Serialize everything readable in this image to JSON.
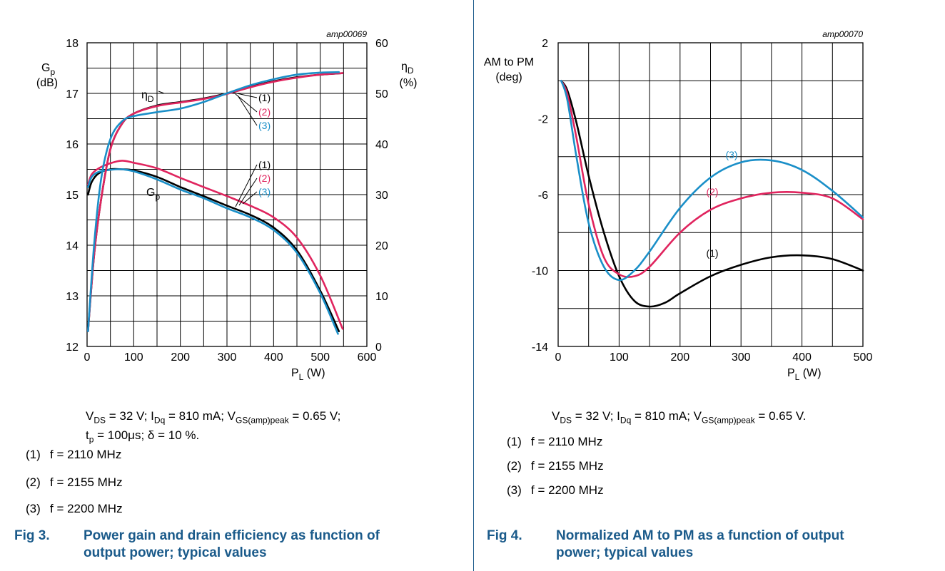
{
  "colors": {
    "c1": "#000000",
    "c2": "#e0245e",
    "c3": "#1a8fc8",
    "frame": "#1a5a8a",
    "caption": "#1a5a8a"
  },
  "fig3": {
    "code": "amp00069",
    "y_left_label": "G",
    "y_left_sub": "p",
    "y_left_unit": "(dB)",
    "y_right_label": "η",
    "y_right_sub": "D",
    "y_right_unit": "(%)",
    "x_label": "P",
    "x_sub": "L",
    "x_unit": " (W)",
    "eta_label": "η",
    "eta_sub": "D",
    "gp_label": "G",
    "gp_sub": "p",
    "curve_tags": [
      "(1)",
      "(2)",
      "(3)"
    ],
    "cond_line1": {
      "a": "V",
      "a_sub": "DS",
      "b": " = 32 V; I",
      "b_sub": "Dq",
      "c": " = 810 mA; V",
      "c_sub": "GS(amp)peak",
      "d": " = 0.65 V;"
    },
    "cond_line2": {
      "a": "t",
      "a_sub": "p",
      "b": " = 100μs; δ = 10 %."
    },
    "legend": [
      {
        "num": "(1)",
        "text": "f = 2110 MHz"
      },
      {
        "num": "(2)",
        "text": "f = 2155 MHz"
      },
      {
        "num": "(3)",
        "text": "f = 2200 MHz"
      }
    ],
    "caption_fig": "Fig 3.",
    "caption_line1": "Power gain and drain efficiency as function of",
    "caption_line2": "output power; typical values"
  },
  "fig4": {
    "code": "amp00070",
    "y_label_line1": "AM to PM",
    "y_label_line2": "(deg)",
    "x_label": "P",
    "x_sub": "L",
    "x_unit": " (W)",
    "curve_tags": [
      "(1)",
      "(2)",
      "(3)"
    ],
    "cond_line1": {
      "a": "V",
      "a_sub": "DS",
      "b": " = 32 V; I",
      "b_sub": "Dq",
      "c": " = 810 mA; V",
      "c_sub": "GS(amp)peak",
      "d": " = 0.65 V."
    },
    "legend": [
      {
        "num": "(1)",
        "text": "f = 2110 MHz"
      },
      {
        "num": "(2)",
        "text": "f = 2155 MHz"
      },
      {
        "num": "(3)",
        "text": "f = 2200 MHz"
      }
    ],
    "caption_fig": "Fig 4.",
    "caption_line1": "Normalized AM to PM as a function of output",
    "caption_line2": "power; typical values"
  },
  "chart_data": [
    {
      "type": "line",
      "title": "",
      "xlabel": "PL (W)",
      "ylabel": "Gp (dB)",
      "y2label": "ηD (%)",
      "xlim": [
        0,
        600
      ],
      "ylim": [
        12,
        18
      ],
      "y2lim": [
        0,
        60
      ],
      "x_ticks": [
        0,
        100,
        200,
        300,
        400,
        500,
        600
      ],
      "y_ticks": [
        12,
        13,
        14,
        15,
        16,
        17,
        18
      ],
      "y2_ticks": [
        0,
        10,
        20,
        30,
        40,
        50,
        60
      ],
      "grid": true,
      "series": [
        {
          "name": "(1)",
          "axis": "left",
          "group": "Gp",
          "color": "#000000",
          "x": [
            2,
            10,
            25,
            50,
            75,
            100,
            150,
            200,
            250,
            300,
            350,
            400,
            450,
            500,
            540
          ],
          "y": [
            15.0,
            15.25,
            15.42,
            15.5,
            15.5,
            15.48,
            15.35,
            15.15,
            14.97,
            14.78,
            14.6,
            14.35,
            13.9,
            13.1,
            12.3
          ]
        },
        {
          "name": "(2)",
          "axis": "left",
          "group": "Gp",
          "color": "#e0245e",
          "x": [
            2,
            10,
            25,
            50,
            75,
            100,
            150,
            200,
            250,
            300,
            350,
            400,
            450,
            500,
            548
          ],
          "y": [
            15.2,
            15.4,
            15.52,
            15.62,
            15.67,
            15.63,
            15.52,
            15.33,
            15.15,
            14.97,
            14.78,
            14.55,
            14.15,
            13.4,
            12.35
          ]
        },
        {
          "name": "(3)",
          "axis": "left",
          "group": "Gp",
          "color": "#1a8fc8",
          "x": [
            2,
            10,
            25,
            50,
            75,
            100,
            150,
            200,
            250,
            300,
            350,
            400,
            450,
            500,
            538
          ],
          "y": [
            15.15,
            15.35,
            15.45,
            15.49,
            15.5,
            15.46,
            15.3,
            15.1,
            14.93,
            14.73,
            14.55,
            14.3,
            13.85,
            13.05,
            12.25
          ]
        },
        {
          "name": "(1)",
          "axis": "right",
          "group": "ηD",
          "color": "#000000",
          "x": [
            2,
            15,
            30,
            50,
            75,
            100,
            150,
            200,
            250,
            300,
            350,
            400,
            450,
            500,
            548
          ],
          "y": [
            3,
            18,
            29,
            39,
            44,
            46,
            47.6,
            48.3,
            49.0,
            50.0,
            51.3,
            52.4,
            53.2,
            53.7,
            54
          ]
        },
        {
          "name": "(2)",
          "axis": "right",
          "group": "ηD",
          "color": "#e0245e",
          "x": [
            2,
            15,
            30,
            50,
            75,
            100,
            150,
            200,
            250,
            300,
            350,
            400,
            450,
            500,
            548
          ],
          "y": [
            3,
            18,
            29,
            39,
            44,
            46,
            47.5,
            48.2,
            48.9,
            49.9,
            51.2,
            52.3,
            53.1,
            53.7,
            54
          ]
        },
        {
          "name": "(3)",
          "axis": "right",
          "group": "ηD",
          "color": "#1a8fc8",
          "x": [
            2,
            15,
            30,
            50,
            75,
            100,
            150,
            200,
            250,
            300,
            350,
            400,
            450,
            500,
            540
          ],
          "y": [
            3,
            20,
            33,
            41,
            44.5,
            45.5,
            46.3,
            47.0,
            48.3,
            50.0,
            51.6,
            52.8,
            53.7,
            54.1,
            54.2
          ]
        }
      ]
    },
    {
      "type": "line",
      "title": "",
      "xlabel": "PL (W)",
      "ylabel": "AM to PM (deg)",
      "xlim": [
        0,
        500
      ],
      "ylim": [
        -14,
        2
      ],
      "x_ticks": [
        0,
        100,
        200,
        300,
        400,
        500
      ],
      "y_ticks": [
        -14,
        -10,
        -6,
        -2,
        2
      ],
      "grid": true,
      "series": [
        {
          "name": "(1)",
          "color": "#000000",
          "x": [
            5,
            15,
            30,
            50,
            75,
            100,
            125,
            150,
            175,
            200,
            250,
            300,
            350,
            400,
            450,
            500
          ],
          "y": [
            0,
            -0.5,
            -2.2,
            -5,
            -8,
            -10.3,
            -11.6,
            -11.9,
            -11.7,
            -11.2,
            -10.3,
            -9.7,
            -9.3,
            -9.2,
            -9.4,
            -10.0
          ]
        },
        {
          "name": "(2)",
          "color": "#e0245e",
          "x": [
            5,
            15,
            30,
            50,
            75,
            100,
            125,
            150,
            200,
            250,
            300,
            350,
            400,
            450,
            500
          ],
          "y": [
            0,
            -0.7,
            -3,
            -6.5,
            -9.3,
            -10.2,
            -10.3,
            -9.8,
            -8.0,
            -6.8,
            -6.2,
            -5.9,
            -5.9,
            -6.2,
            -7.3
          ]
        },
        {
          "name": "(3)",
          "color": "#1a8fc8",
          "x": [
            5,
            15,
            30,
            50,
            75,
            100,
            125,
            150,
            200,
            250,
            300,
            350,
            400,
            450,
            500
          ],
          "y": [
            0,
            -1.0,
            -4,
            -7.5,
            -9.8,
            -10.5,
            -10.0,
            -9.0,
            -6.7,
            -5.1,
            -4.3,
            -4.2,
            -4.7,
            -5.8,
            -7.2
          ]
        }
      ]
    }
  ]
}
